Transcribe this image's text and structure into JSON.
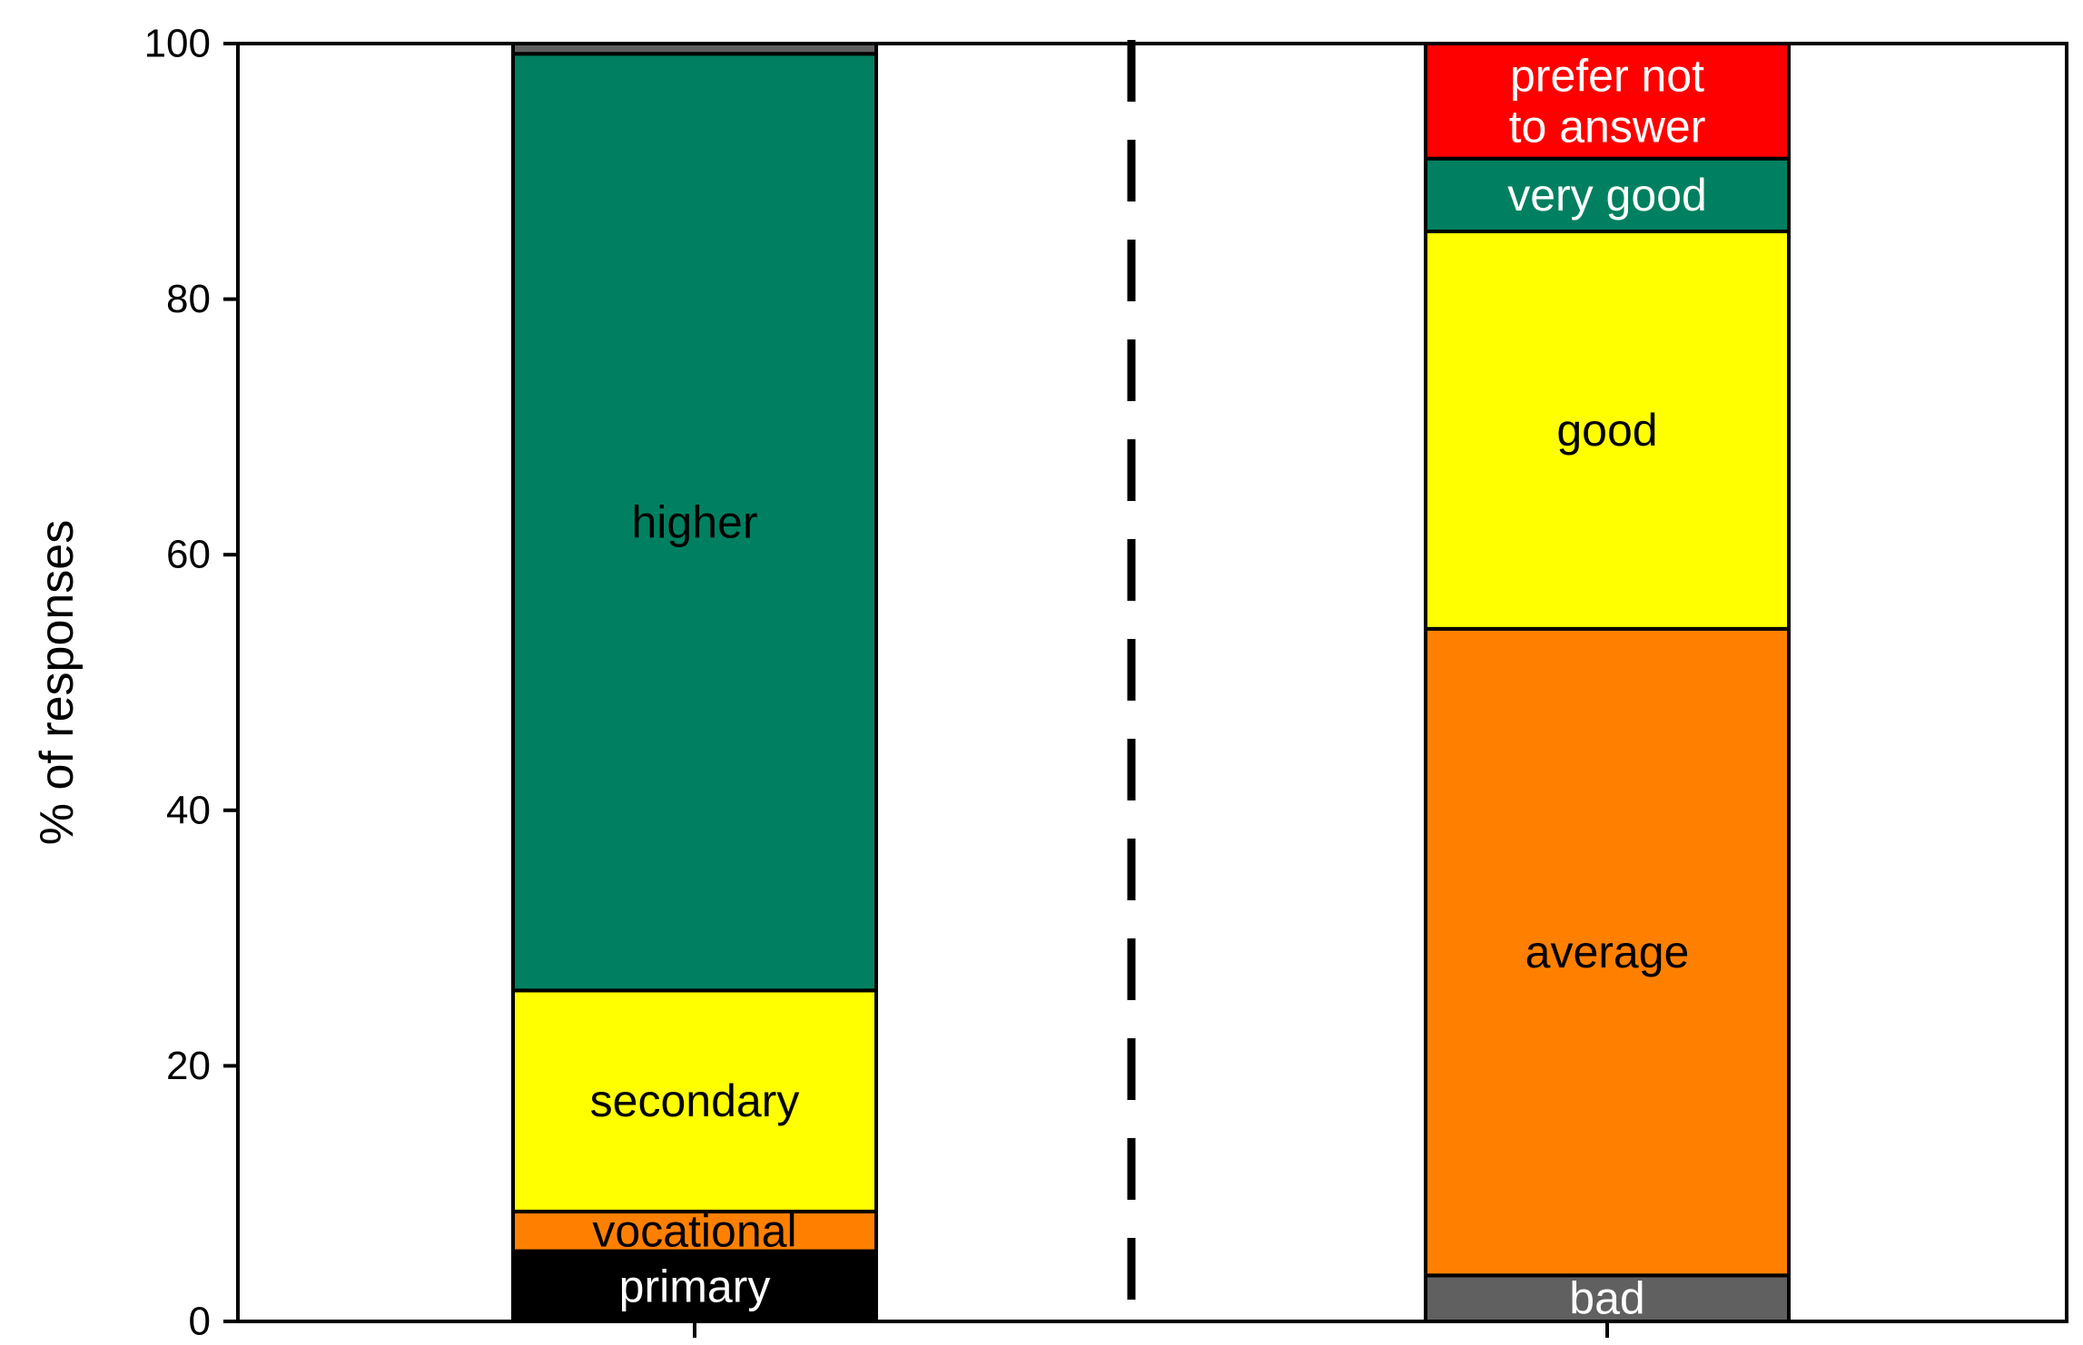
{
  "chart_data": {
    "type": "bar",
    "stacked": true,
    "ylabel": "% of responses",
    "ylim": [
      0,
      100
    ],
    "yticks": [
      0,
      20,
      40,
      60,
      80,
      100
    ],
    "grid": false,
    "legend": "none",
    "divider": "dashed-vertical",
    "bars": [
      {
        "segments": [
          {
            "label": "primary",
            "value": 5.5,
            "color": "#000000",
            "label_color": "#ffffff"
          },
          {
            "label": "vocational",
            "value": 3.1,
            "color": "#ff8000",
            "label_color": "#000000"
          },
          {
            "label": "secondary",
            "value": 17.3,
            "color": "#ffff00",
            "label_color": "#000000"
          },
          {
            "label": "higher",
            "value": 73.3,
            "color": "#008060",
            "label_color": "#000000"
          },
          {
            "label": "",
            "value": 0.8,
            "color": "#606060",
            "label_color": "#000000"
          }
        ]
      },
      {
        "segments": [
          {
            "label": "bad",
            "value": 3.6,
            "color": "#606060",
            "label_color": "#ffffff"
          },
          {
            "label": "average",
            "value": 50.6,
            "color": "#ff8000",
            "label_color": "#000000"
          },
          {
            "label": "good",
            "value": 31.1,
            "color": "#ffff00",
            "label_color": "#000000"
          },
          {
            "label": "very good",
            "value": 5.7,
            "color": "#008060",
            "label_color": "#ffffff"
          },
          {
            "label": "prefer not to answer",
            "value": 9.0,
            "color": "#ff0000",
            "label_color": "#ffffff"
          }
        ]
      }
    ]
  }
}
